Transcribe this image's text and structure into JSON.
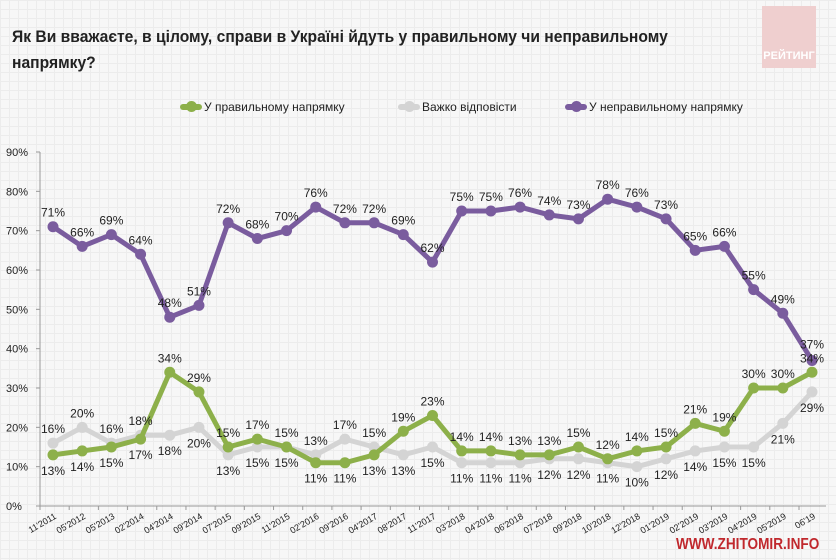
{
  "title": "Як Ви вважаєте, в цілому, справи в Україні йдуть у правильному чи неправильному напрямку?",
  "logo_text": "РЕЙТИНГ",
  "watermark": "WWW.ZHITOMIR.INFO",
  "chart_data": {
    "type": "line",
    "title": "Як Ви вважаєте, в цілому, справи в Україні йдуть у правильному чи неправильному напрямку?",
    "xlabel": "",
    "ylabel": "",
    "ylim": [
      0,
      90
    ],
    "yticks": [
      "0%",
      "10%",
      "20%",
      "30%",
      "40%",
      "50%",
      "60%",
      "70%",
      "80%",
      "90%"
    ],
    "grid": true,
    "legend_position": "top",
    "categories": [
      "11'2011",
      "05'2012",
      "05'2013",
      "02'2014",
      "04'2014",
      "09'2014",
      "07'2015",
      "09'2015",
      "11'2015",
      "02'2016",
      "09'2016",
      "04'2017",
      "08'2017",
      "11'2017",
      "03'2018",
      "04'2018",
      "06'2018",
      "07'2018",
      "09'2018",
      "10'2018",
      "12'2018",
      "01'2019",
      "02'2019",
      "03'2019",
      "04'2019",
      "05'2019",
      "06'19"
    ],
    "series": [
      {
        "name": "У правильному напрямку",
        "color": "#8db04a",
        "values": [
          13,
          14,
          15,
          17,
          34,
          29,
          15,
          17,
          15,
          11,
          11,
          13,
          19,
          23,
          14,
          14,
          13,
          13,
          15,
          12,
          14,
          15,
          21,
          19,
          30,
          30,
          34
        ]
      },
      {
        "name": "Важко відповісти",
        "color": "#d4d4d4",
        "values": [
          16,
          20,
          16,
          18,
          18,
          20,
          13,
          15,
          15,
          13,
          17,
          15,
          13,
          15,
          11,
          11,
          11,
          12,
          12,
          11,
          10,
          12,
          14,
          15,
          15,
          21,
          29
        ]
      },
      {
        "name": "У неправильному напрямку",
        "color": "#7a5c9e",
        "values": [
          71,
          66,
          69,
          64,
          48,
          51,
          72,
          68,
          70,
          76,
          72,
          72,
          69,
          62,
          75,
          75,
          76,
          74,
          73,
          78,
          76,
          73,
          65,
          66,
          55,
          49,
          37
        ]
      }
    ]
  }
}
